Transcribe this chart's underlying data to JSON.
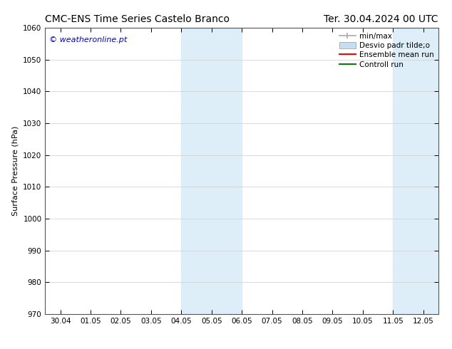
{
  "title_left": "CMC-ENS Time Series Castelo Branco",
  "title_right": "Ter. 30.04.2024 00 UTC",
  "ylabel": "Surface Pressure (hPa)",
  "watermark": "© weatheronline.pt",
  "watermark_color": "#0000cc",
  "ylim": [
    970,
    1060
  ],
  "yticks": [
    970,
    980,
    990,
    1000,
    1010,
    1020,
    1030,
    1040,
    1050,
    1060
  ],
  "xlim_start": -0.5,
  "xlim_end": 12.5,
  "xtick_labels": [
    "30.04",
    "01.05",
    "02.05",
    "03.05",
    "04.05",
    "05.05",
    "06.05",
    "07.05",
    "08.05",
    "09.05",
    "10.05",
    "11.05",
    "12.05"
  ],
  "xtick_positions": [
    0.0,
    1.0,
    2.0,
    3.0,
    4.0,
    5.0,
    6.0,
    7.0,
    8.0,
    9.0,
    10.0,
    11.0,
    12.0
  ],
  "shaded_regions": [
    {
      "xmin": 4.0,
      "xmax": 6.0
    },
    {
      "xmin": 11.0,
      "xmax": 12.5
    }
  ],
  "shaded_color": "#ddeef8",
  "legend_entries": [
    {
      "label": "min/max",
      "color": "#aaaaaa",
      "type": "errorbar"
    },
    {
      "label": "Desvio padr tilde;o",
      "color": "#c8ddf0",
      "type": "rect"
    },
    {
      "label": "Ensemble mean run",
      "color": "#ff0000",
      "type": "line"
    },
    {
      "label": "Controll run",
      "color": "#008000",
      "type": "line"
    }
  ],
  "bg_color": "#ffffff",
  "grid_color": "#cccccc",
  "title_fontsize": 10,
  "axis_fontsize": 8,
  "tick_fontsize": 7.5,
  "legend_fontsize": 7.5
}
